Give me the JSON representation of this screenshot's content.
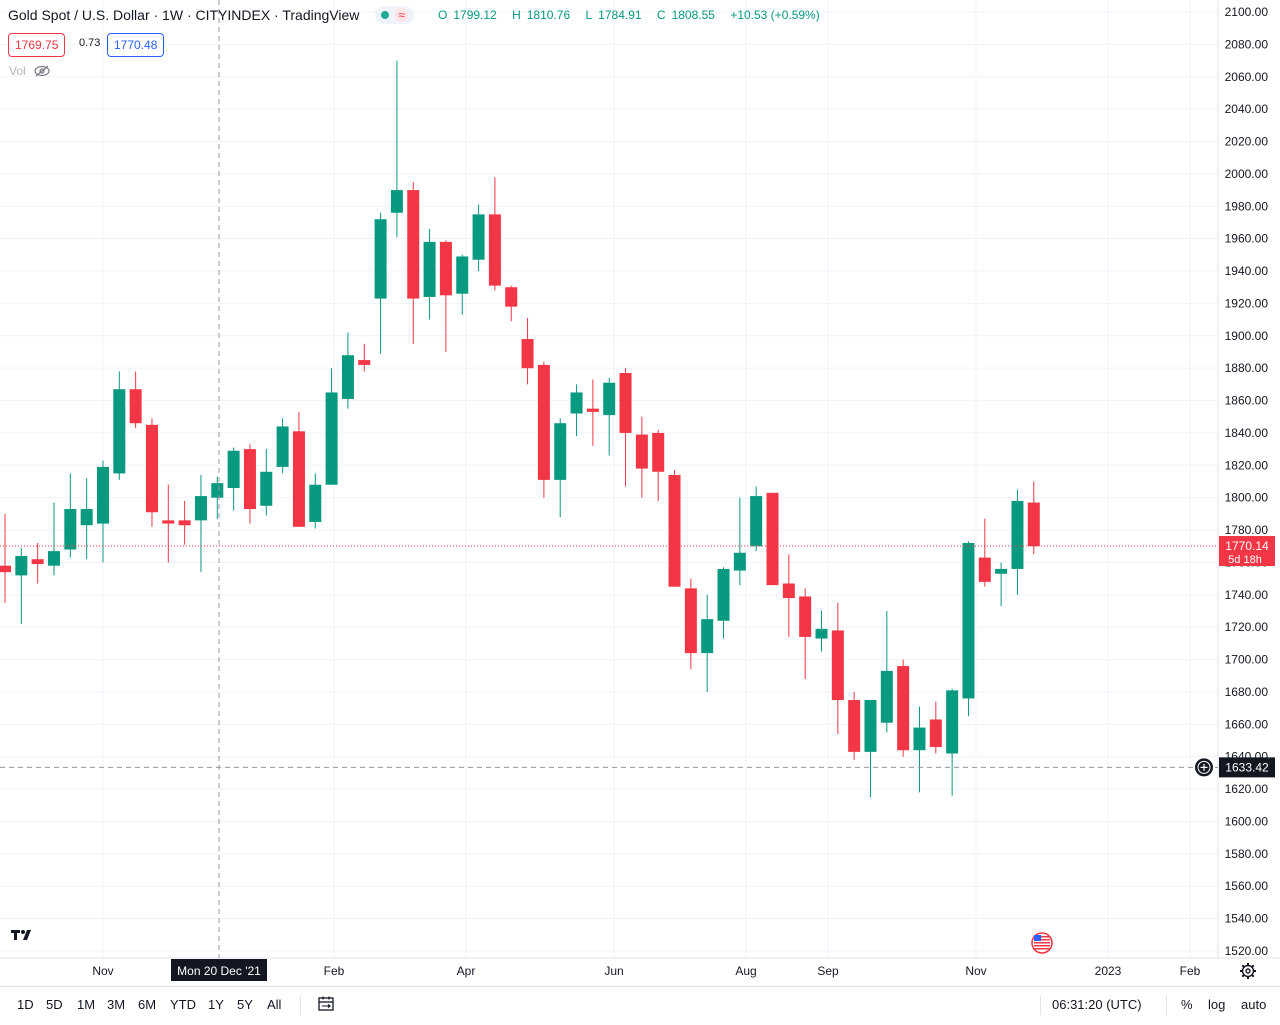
{
  "header": {
    "title": "Gold Spot / U.S. Dollar · 1W · CITYINDEX · TradingView",
    "ohlc": {
      "o_label": "O",
      "o": "1799.12",
      "h_label": "H",
      "h": "1810.76",
      "l_label": "L",
      "l": "1784.91",
      "c_label": "C",
      "c": "1808.55",
      "change": "+10.53 (+0.59%)"
    },
    "sell_price": "1769.75",
    "spread": "0.73",
    "buy_price": "1770.48",
    "vol_label": "Vol"
  },
  "colors": {
    "up": "#089981",
    "down": "#f23645",
    "accent": "#2962ff"
  },
  "chart_data": {
    "type": "candlestick",
    "ylim": [
      1510,
      2102
    ],
    "yticks": [
      2100,
      2080,
      2060,
      2040,
      2020,
      2000,
      1980,
      1960,
      1940,
      1920,
      1900,
      1880,
      1860,
      1840,
      1820,
      1800,
      1780,
      1760,
      1740,
      1720,
      1700,
      1680,
      1660,
      1640,
      1620,
      1600,
      1580,
      1560,
      1540,
      1520
    ],
    "xticks": [
      "Nov",
      "Feb",
      "Apr",
      "Jun",
      "Aug",
      "Sep",
      "Nov",
      "2023",
      "Feb"
    ],
    "crosshair_x_label": "Mon 20 Dec '21",
    "crosshair_y_label": "1633.42",
    "current_price": "1770.14",
    "countdown": "5d 18h",
    "candles": [
      {
        "o": 1758,
        "h": 1790,
        "l": 1735,
        "c": 1754
      },
      {
        "o": 1752,
        "h": 1769,
        "l": 1722,
        "c": 1764
      },
      {
        "o": 1762,
        "h": 1772,
        "l": 1747,
        "c": 1759
      },
      {
        "o": 1758,
        "h": 1797,
        "l": 1752,
        "c": 1767
      },
      {
        "o": 1768,
        "h": 1815,
        "l": 1763,
        "c": 1793
      },
      {
        "o": 1783,
        "h": 1812,
        "l": 1762,
        "c": 1793
      },
      {
        "o": 1784,
        "h": 1823,
        "l": 1760,
        "c": 1819
      },
      {
        "o": 1815,
        "h": 1878,
        "l": 1811,
        "c": 1867
      },
      {
        "o": 1867,
        "h": 1878,
        "l": 1843,
        "c": 1846
      },
      {
        "o": 1845,
        "h": 1849,
        "l": 1782,
        "c": 1791
      },
      {
        "o": 1786,
        "h": 1808,
        "l": 1760,
        "c": 1784
      },
      {
        "o": 1786,
        "h": 1798,
        "l": 1771,
        "c": 1783
      },
      {
        "o": 1786,
        "h": 1814,
        "l": 1754,
        "c": 1801
      },
      {
        "o": 1800,
        "h": 1813,
        "l": 1787,
        "c": 1809
      },
      {
        "o": 1806,
        "h": 1831,
        "l": 1792,
        "c": 1829
      },
      {
        "o": 1830,
        "h": 1833,
        "l": 1784,
        "c": 1793
      },
      {
        "o": 1795,
        "h": 1830,
        "l": 1789,
        "c": 1816
      },
      {
        "o": 1819,
        "h": 1849,
        "l": 1815,
        "c": 1844
      },
      {
        "o": 1841,
        "h": 1853,
        "l": 1782,
        "c": 1782
      },
      {
        "o": 1785,
        "h": 1815,
        "l": 1781,
        "c": 1808
      },
      {
        "o": 1808,
        "h": 1880,
        "l": 1808,
        "c": 1865
      },
      {
        "o": 1861,
        "h": 1902,
        "l": 1855,
        "c": 1888
      },
      {
        "o": 1885,
        "h": 1895,
        "l": 1878,
        "c": 1882
      },
      {
        "o": 1923,
        "h": 1976,
        "l": 1889,
        "c": 1972
      },
      {
        "o": 1976,
        "h": 2070,
        "l": 1961,
        "c": 1990
      },
      {
        "o": 1990,
        "h": 1995,
        "l": 1895,
        "c": 1923
      },
      {
        "o": 1924,
        "h": 1966,
        "l": 1910,
        "c": 1958
      },
      {
        "o": 1958,
        "h": 1959,
        "l": 1890,
        "c": 1925
      },
      {
        "o": 1926,
        "h": 1950,
        "l": 1913,
        "c": 1949
      },
      {
        "o": 1947,
        "h": 1981,
        "l": 1940,
        "c": 1975
      },
      {
        "o": 1975,
        "h": 1998,
        "l": 1928,
        "c": 1931
      },
      {
        "o": 1930,
        "h": 1931,
        "l": 1909,
        "c": 1918
      },
      {
        "o": 1898,
        "h": 1911,
        "l": 1870,
        "c": 1880
      },
      {
        "o": 1882,
        "h": 1884,
        "l": 1800,
        "c": 1811
      },
      {
        "o": 1811,
        "h": 1849,
        "l": 1788,
        "c": 1846
      },
      {
        "o": 1852,
        "h": 1870,
        "l": 1838,
        "c": 1865
      },
      {
        "o": 1855,
        "h": 1873,
        "l": 1832,
        "c": 1853
      },
      {
        "o": 1851,
        "h": 1874,
        "l": 1826,
        "c": 1871
      },
      {
        "o": 1877,
        "h": 1880,
        "l": 1807,
        "c": 1840
      },
      {
        "o": 1839,
        "h": 1850,
        "l": 1800,
        "c": 1818
      },
      {
        "o": 1840,
        "h": 1842,
        "l": 1798,
        "c": 1816
      },
      {
        "o": 1814,
        "h": 1817,
        "l": 1748,
        "c": 1745
      },
      {
        "o": 1744,
        "h": 1750,
        "l": 1694,
        "c": 1704
      },
      {
        "o": 1704,
        "h": 1740,
        "l": 1680,
        "c": 1725
      },
      {
        "o": 1724,
        "h": 1757,
        "l": 1713,
        "c": 1756
      },
      {
        "o": 1755,
        "h": 1800,
        "l": 1746,
        "c": 1766
      },
      {
        "o": 1770,
        "h": 1807,
        "l": 1767,
        "c": 1801
      },
      {
        "o": 1803,
        "h": 1803,
        "l": 1746,
        "c": 1746
      },
      {
        "o": 1747,
        "h": 1765,
        "l": 1714,
        "c": 1738
      },
      {
        "o": 1739,
        "h": 1744,
        "l": 1688,
        "c": 1714
      },
      {
        "o": 1713,
        "h": 1730,
        "l": 1705,
        "c": 1719
      },
      {
        "o": 1718,
        "h": 1735,
        "l": 1654,
        "c": 1675
      },
      {
        "o": 1675,
        "h": 1680,
        "l": 1638,
        "c": 1643
      },
      {
        "o": 1643,
        "h": 1675,
        "l": 1615,
        "c": 1675
      },
      {
        "o": 1661,
        "h": 1730,
        "l": 1655,
        "c": 1693
      },
      {
        "o": 1696,
        "h": 1700,
        "l": 1640,
        "c": 1644
      },
      {
        "o": 1644,
        "h": 1671,
        "l": 1618,
        "c": 1658
      },
      {
        "o": 1663,
        "h": 1674,
        "l": 1642,
        "c": 1646
      },
      {
        "o": 1642,
        "h": 1682,
        "l": 1616,
        "c": 1681
      },
      {
        "o": 1676,
        "h": 1773,
        "l": 1665,
        "c": 1772
      },
      {
        "o": 1763,
        "h": 1787,
        "l": 1745,
        "c": 1748
      },
      {
        "o": 1753,
        "h": 1760,
        "l": 1733,
        "c": 1756
      },
      {
        "o": 1756,
        "h": 1805,
        "l": 1740,
        "c": 1798
      },
      {
        "o": 1797,
        "h": 1810,
        "l": 1765,
        "c": 1770
      }
    ]
  },
  "bottom_toolbar": {
    "ranges": [
      "1D",
      "5D",
      "1M",
      "3M",
      "6M",
      "YTD",
      "1Y",
      "5Y",
      "All"
    ],
    "time": "06:31:20 (UTC)",
    "percent": "%",
    "log": "log",
    "auto": "auto"
  },
  "icons": [
    "eye-hidden-icon",
    "calendar-range-icon",
    "gear-icon",
    "us-flag-icon",
    "tradingview-logo-icon",
    "plus-circle-icon"
  ]
}
